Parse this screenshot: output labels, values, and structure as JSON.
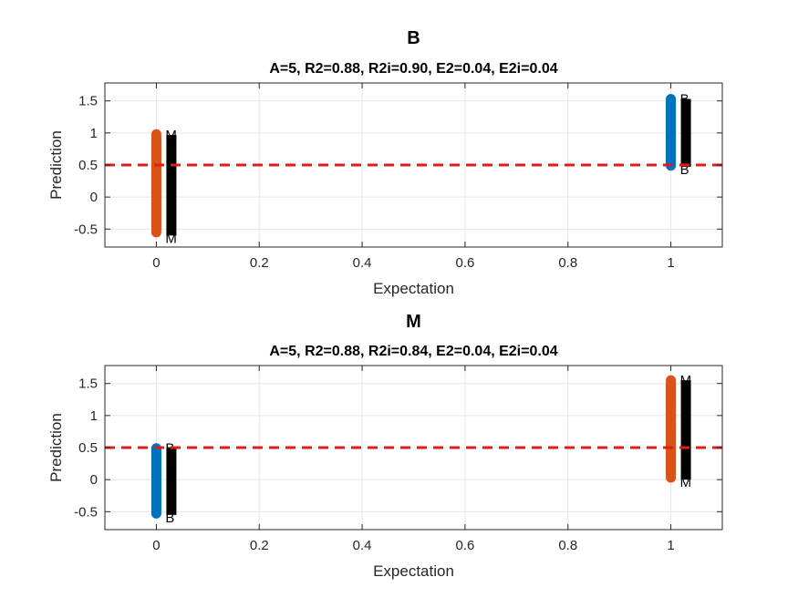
{
  "chart_data": [
    {
      "type": "scatter",
      "title": "B",
      "subtitle": "A=5, R2=0.88, R2i=0.90, E2=0.04, E2i=0.04",
      "xlabel": "Expectation",
      "ylabel": "Prediction",
      "xlim": [
        -0.1,
        1.1
      ],
      "ylim": [
        -0.78,
        1.78
      ],
      "xticks": [
        0,
        0.2,
        0.4,
        0.6,
        0.8,
        1
      ],
      "xtick_labels": [
        "0",
        "0.2",
        "0.4",
        "0.6",
        "0.8",
        "1"
      ],
      "yticks": [
        -0.5,
        0,
        0.5,
        1,
        1.5
      ],
      "ytick_labels": [
        "-0.5",
        "0",
        "0.5",
        "1",
        "1.5"
      ],
      "grid": true,
      "threshold": 0.5,
      "colors": {
        "B": "#0072BD",
        "M": "#D95319",
        "threshold": "#E41A1C",
        "label": "#000000"
      },
      "series": [
        {
          "class": "M",
          "x": 0,
          "y_min": -0.55,
          "y_max": 0.98
        },
        {
          "class": "B",
          "x": 1,
          "y_min": 0.49,
          "y_max": 1.53
        }
      ],
      "point_labels": [
        {
          "text": "M",
          "x": 0,
          "y_min": -0.6,
          "y_max": 0.97
        },
        {
          "text": "B",
          "x": 1,
          "y_min": 0.47,
          "y_max": 1.53
        }
      ]
    },
    {
      "type": "scatter",
      "title": "M",
      "subtitle": "A=5, R2=0.88, R2i=0.84, E2=0.04, E2i=0.04",
      "xlabel": "Expectation",
      "ylabel": "Prediction",
      "xlim": [
        -0.1,
        1.1
      ],
      "ylim": [
        -0.78,
        1.78
      ],
      "xticks": [
        0,
        0.2,
        0.4,
        0.6,
        0.8,
        1
      ],
      "xtick_labels": [
        "0",
        "0.2",
        "0.4",
        "0.6",
        "0.8",
        "1"
      ],
      "yticks": [
        -0.5,
        0,
        0.5,
        1,
        1.5
      ],
      "ytick_labels": [
        "-0.5",
        "0",
        "0.5",
        "1",
        "1.5"
      ],
      "grid": true,
      "threshold": 0.5,
      "colors": {
        "B": "#0072BD",
        "M": "#D95319",
        "threshold": "#E41A1C",
        "label": "#000000"
      },
      "series": [
        {
          "class": "B",
          "x": 0,
          "y_min": -0.53,
          "y_max": 0.49
        },
        {
          "class": "M",
          "x": 1,
          "y_min": 0.03,
          "y_max": 1.55
        }
      ],
      "point_labels": [
        {
          "text": "B",
          "x": 0,
          "y_min": -0.55,
          "y_max": 0.49
        },
        {
          "text": "M",
          "x": 1,
          "y_min": 0.0,
          "y_max": 1.55
        }
      ]
    }
  ]
}
